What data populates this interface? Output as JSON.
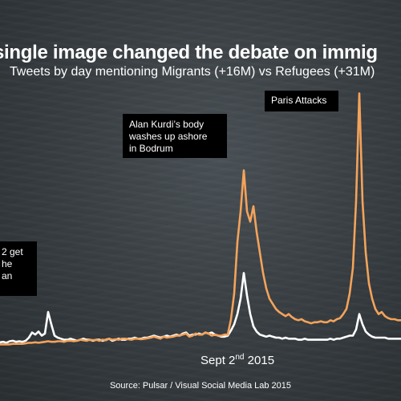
{
  "title": "single image changed the debate on immig",
  "subtitle": "Tweets by day mentioning Migrants (+16M) vs Refugees (+31M)",
  "source": "Source: Pulsar / Visual Social Media Lab 2015",
  "annotations": {
    "paris": "Paris Attacks",
    "kurdi": [
      "Alan Kurdi’s body",
      "washes up ashore",
      "in Bodrum"
    ],
    "left_fragment": [
      "2 get",
      "he",
      "an"
    ]
  },
  "x_tick": {
    "prefix": "Sept 2",
    "sup": "nd",
    "suffix": " 2015"
  },
  "colors": {
    "migrants": "#ffffff",
    "refugees": "#f3a35b",
    "background": "#3b4145"
  },
  "chart_data": {
    "type": "line",
    "title": "single image changed the debate on immig",
    "subtitle": "Tweets by day mentioning Migrants (+16M) vs Refugees (+31M)",
    "xlabel": "",
    "ylabel": "",
    "x_note": "daily points; only labelled date is Sept 2nd 2015",
    "x": [
      0,
      4,
      8,
      12,
      16,
      20,
      24,
      28,
      32,
      36,
      40,
      44,
      48,
      52,
      56,
      60,
      64,
      68,
      72,
      76,
      80,
      84,
      88,
      92,
      96,
      100,
      104,
      108,
      112,
      116,
      120,
      124,
      128,
      132,
      136,
      140,
      144,
      148,
      152,
      156,
      160,
      164,
      168,
      172,
      176,
      180,
      184,
      188,
      192,
      196,
      200,
      204,
      208,
      212,
      216,
      220,
      224,
      228,
      232,
      236,
      240,
      244,
      248,
      252,
      256,
      260,
      264,
      268,
      272,
      276,
      280,
      284,
      288,
      292,
      296,
      300,
      304,
      308,
      312,
      316,
      320,
      324,
      328,
      332,
      336,
      340,
      344,
      348,
      352,
      356,
      360,
      364,
      368,
      372,
      376,
      380,
      384,
      388,
      392,
      396,
      400,
      404,
      408,
      412,
      416,
      420,
      424,
      428,
      432,
      436,
      440,
      444,
      448,
      452,
      456,
      460,
      464,
      468,
      472,
      476,
      480,
      484,
      488,
      492,
      496,
      500
    ],
    "series": [
      {
        "name": "Migrants",
        "color": "#ffffff",
        "values": [
          0.25,
          0.3,
          0.2,
          0.35,
          0.4,
          0.3,
          0.35,
          0.3,
          0.4,
          0.7,
          1.2,
          1.0,
          1.3,
          0.9,
          1.1,
          3.2,
          2.0,
          0.9,
          0.7,
          0.6,
          0.5,
          0.5,
          0.6,
          0.5,
          0.4,
          0.5,
          0.6,
          0.5,
          0.5,
          0.4,
          0.5,
          0.5,
          0.4,
          0.5,
          0.6,
          0.4,
          0.5,
          0.6,
          0.5,
          0.5,
          0.6,
          0.6,
          0.7,
          0.6,
          0.6,
          0.7,
          0.7,
          0.8,
          0.9,
          0.8,
          0.7,
          0.8,
          0.9,
          0.8,
          0.9,
          1.0,
          0.9,
          1.1,
          1.2,
          0.9,
          1.0,
          1.0,
          1.1,
          1.0,
          1.2,
          1.1,
          1.2,
          1.0,
          0.9,
          0.8,
          0.8,
          0.9,
          1.4,
          2.0,
          3.0,
          4.5,
          7.0,
          4.8,
          3.0,
          1.8,
          1.3,
          1.0,
          0.9,
          0.8,
          0.9,
          0.8,
          0.7,
          0.7,
          0.6,
          0.7,
          0.6,
          0.6,
          0.6,
          0.5,
          0.5,
          0.6,
          0.5,
          0.5,
          0.5,
          0.5,
          0.5,
          0.5,
          0.5,
          0.6,
          0.5,
          0.6,
          0.6,
          0.7,
          0.8,
          0.9,
          0.9,
          1.5,
          3.0,
          2.0,
          1.3,
          1.0,
          0.8,
          0.7,
          0.7,
          0.7,
          0.7,
          0.6,
          0.6,
          0.6,
          0.6,
          0.6
        ]
      },
      {
        "name": "Refugees",
        "color": "#f3a35b",
        "values": [
          0.05,
          0.05,
          0.05,
          0.05,
          0.1,
          0.1,
          0.1,
          0.1,
          0.15,
          0.2,
          0.2,
          0.25,
          0.2,
          0.25,
          0.3,
          0.35,
          0.3,
          0.3,
          0.35,
          0.35,
          0.3,
          0.4,
          0.4,
          0.35,
          0.4,
          0.5,
          0.45,
          0.4,
          0.5,
          0.45,
          0.5,
          0.4,
          0.5,
          0.45,
          0.6,
          0.5,
          0.55,
          0.5,
          0.6,
          0.6,
          0.55,
          0.5,
          0.6,
          0.6,
          0.55,
          0.6,
          0.65,
          0.7,
          0.8,
          0.7,
          0.6,
          0.8,
          0.7,
          0.75,
          0.8,
          0.9,
          0.9,
          1.0,
          1.1,
          0.8,
          0.9,
          1.1,
          1.0,
          1.0,
          1.2,
          1.1,
          0.9,
          1.0,
          0.9,
          0.9,
          1.0,
          1.0,
          2.5,
          5.0,
          10.0,
          13.0,
          17.0,
          13.0,
          12.0,
          13.5,
          11.0,
          9.0,
          7.0,
          5.5,
          4.5,
          4.0,
          3.5,
          3.2,
          3.0,
          2.8,
          3.0,
          2.7,
          2.5,
          2.4,
          2.5,
          2.3,
          2.2,
          2.1,
          2.2,
          2.2,
          2.3,
          2.2,
          2.2,
          2.4,
          2.3,
          2.5,
          2.6,
          3.0,
          3.5,
          5.0,
          7.5,
          14.0,
          24.5,
          14.0,
          9.0,
          6.0,
          4.5,
          3.5,
          3.0,
          3.2,
          2.8,
          2.6,
          2.5,
          2.5,
          2.4,
          2.4
        ]
      }
    ],
    "ylim": [
      0,
      25
    ],
    "grid": false,
    "legend": "none"
  }
}
